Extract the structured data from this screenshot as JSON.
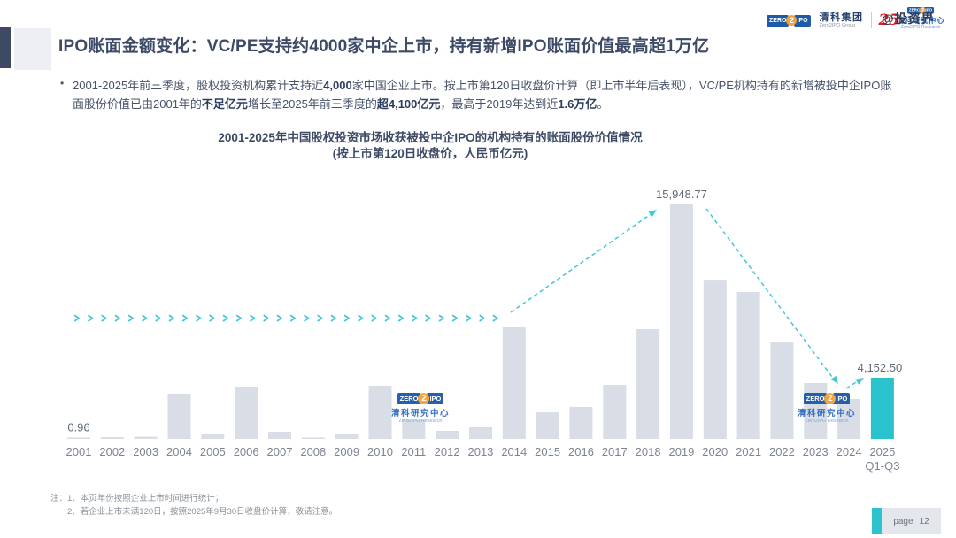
{
  "header": {
    "title": "IPO账面金额变化：VC/PE支持约4000家中企上市，持有新增IPO账面价值最高超1万亿"
  },
  "logos": {
    "group": {
      "zero": "ZERO",
      "two": "2",
      "ipo": "IPO",
      "cn": "清科集团",
      "en": "Zero2IPO Group"
    },
    "anniversary": "25",
    "research": {
      "zero": "ZERO",
      "two": "2",
      "ipo": "IPO",
      "cn": "清科研究中心",
      "en": "Zero2IPO Research"
    },
    "watermark_handle": "@投资界"
  },
  "bullet": {
    "marker": "•",
    "segments": [
      {
        "text": "2001-2025年前三季度，股权投资机构累计支持近",
        "bold": false
      },
      {
        "text": "4,000",
        "bold": true
      },
      {
        "text": "家中国企业上市。按上市第120日收盘价计算（即上市半年后表现），VC/PE机构持有的新增被投中企IPO账面股份价值已由2001年的",
        "bold": false
      },
      {
        "text": "不足亿元",
        "bold": true
      },
      {
        "text": "增长至2025年前三季度的",
        "bold": false
      },
      {
        "text": "超4,100亿元",
        "bold": true
      },
      {
        "text": "，最高于2019年达到近",
        "bold": false
      },
      {
        "text": "1.6万亿",
        "bold": true
      },
      {
        "text": "。",
        "bold": false
      }
    ]
  },
  "chart_data": {
    "type": "bar",
    "title": "2001-2025年中国股权投资市场收获被投中企IPO的机构持有的账面股份价值情况",
    "subtitle": "(按上市第120日收盘价，人民币亿元)",
    "categories": [
      "2001",
      "2002",
      "2003",
      "2004",
      "2005",
      "2006",
      "2007",
      "2008",
      "2009",
      "2010",
      "2011",
      "2012",
      "2013",
      "2014",
      "2015",
      "2016",
      "2017",
      "2018",
      "2019",
      "2020",
      "2021",
      "2022",
      "2023",
      "2024",
      "2025\nQ1-Q3"
    ],
    "values": [
      0.96,
      120,
      150,
      3070,
      300,
      3550,
      480,
      90,
      300,
      3610,
      1320,
      540,
      780,
      7640,
      1810,
      2170,
      3670,
      7460,
      15948.77,
      10830,
      9990,
      6560,
      3790,
      2710,
      4152.5
    ],
    "annotations": [
      {
        "index": 0,
        "text": "0.96"
      },
      {
        "index": 18,
        "text": "15,948.77"
      },
      {
        "index": 24,
        "text": "4,152.50"
      }
    ],
    "highlight_index": 24,
    "bar_color": "#d8dde6",
    "highlight_color": "#29c2cd",
    "trend_color": "#3fc8d8",
    "axis_label_color": "#7d8591",
    "annotation_color": "#5f6975",
    "ylim": [
      0,
      16000
    ],
    "grid": false,
    "legend": "none"
  },
  "watermark_logo": {
    "zero": "ZERO",
    "two": "2",
    "ipo": "IPO",
    "cn": "清科研究中心",
    "en": "Zero2IPO Research"
  },
  "notes": {
    "line1": "注：1、本页年份按照企业上市时间进行统计；",
    "line2": "2、若企业上市未满120日，按照2025年9月30日收盘价计算，敬请注意。"
  },
  "footer": {
    "page_label": "page",
    "page_number": "12"
  }
}
